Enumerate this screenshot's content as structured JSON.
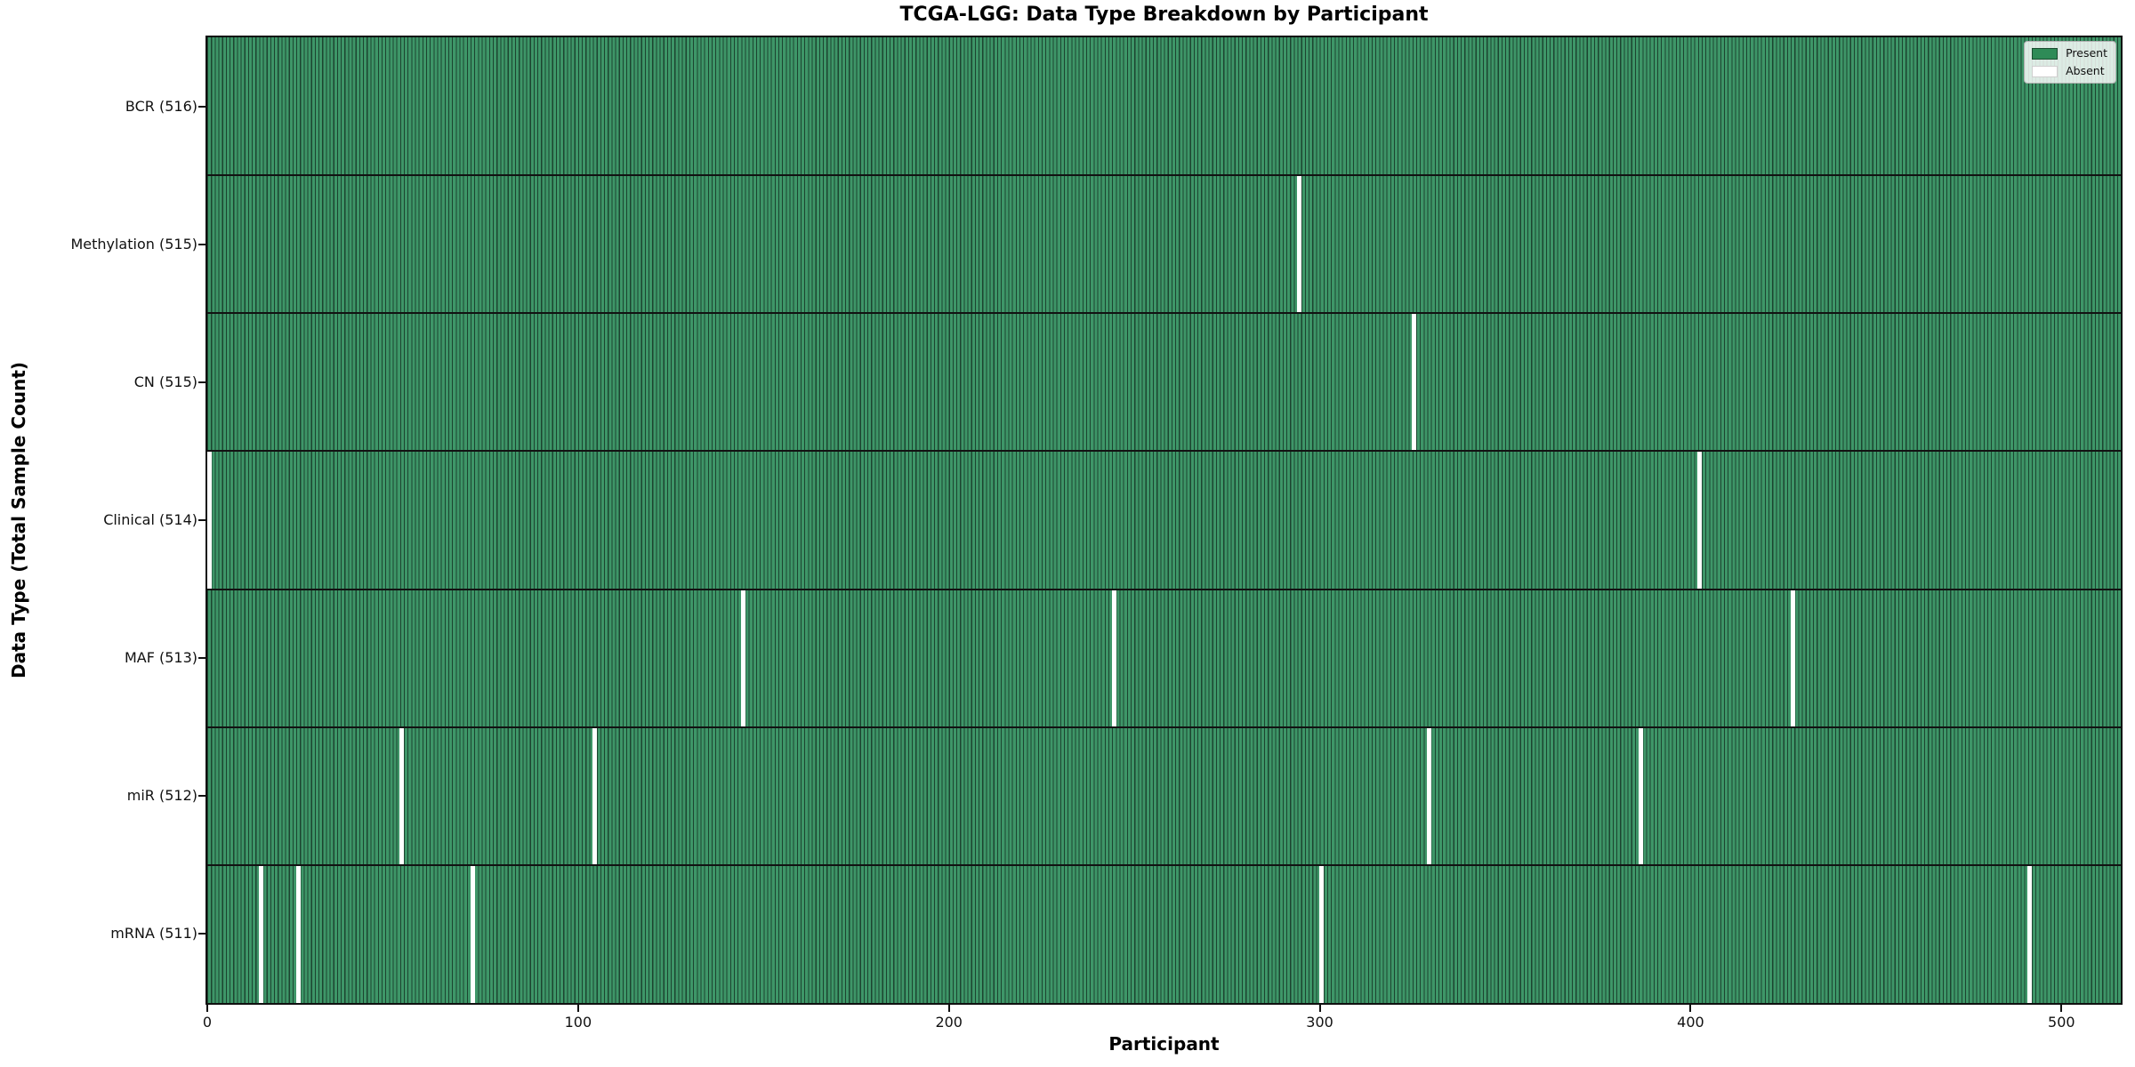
{
  "title": "TCGA-LGG: Data Type Breakdown by Participant",
  "x_axis_label": "Participant",
  "y_axis_label": "Data Type (Total Sample Count)",
  "legend": {
    "present_label": "Present",
    "absent_label": "Absent"
  },
  "colors": {
    "present_fill": "#3e9668",
    "bar_edge": "#1c4430",
    "absent_fill": "#ffffff",
    "legend_present": "#2e8b57",
    "spine": "#101010"
  },
  "chart_data": {
    "type": "heatmap",
    "title": "TCGA-LGG: Data Type Breakdown by Participant",
    "xlabel": "Participant",
    "ylabel": "Data Type (Total Sample Count)",
    "legend_entries": [
      {
        "label": "Present",
        "color": "#2e8b57"
      },
      {
        "label": "Absent",
        "color": "#ffffff"
      }
    ],
    "legend_position": "upper right",
    "grid": false,
    "n_participants": 516,
    "x_axis": {
      "range": [
        0,
        516
      ],
      "ticks": [
        0,
        100,
        200,
        300,
        400,
        500
      ]
    },
    "rows": [
      {
        "name": "BCR",
        "label": "BCR (516)",
        "total": 516,
        "absent_participants": []
      },
      {
        "name": "Methylation",
        "label": "Methylation (515)",
        "total": 515,
        "absent_participants": [
          294
        ]
      },
      {
        "name": "CN",
        "label": "CN (515)",
        "total": 515,
        "absent_participants": [
          325
        ]
      },
      {
        "name": "Clinical",
        "label": "Clinical (514)",
        "total": 514,
        "absent_participants": [
          0,
          402
        ]
      },
      {
        "name": "MAF",
        "label": "MAF (513)",
        "total": 513,
        "absent_participants": [
          144,
          244,
          427
        ]
      },
      {
        "name": "miR",
        "label": "miR (512)",
        "total": 512,
        "absent_participants": [
          52,
          104,
          329,
          386
        ]
      },
      {
        "name": "mRNA",
        "label": "mRNA (511)",
        "total": 511,
        "absent_participants": [
          14,
          24,
          71,
          300,
          491
        ]
      }
    ]
  }
}
